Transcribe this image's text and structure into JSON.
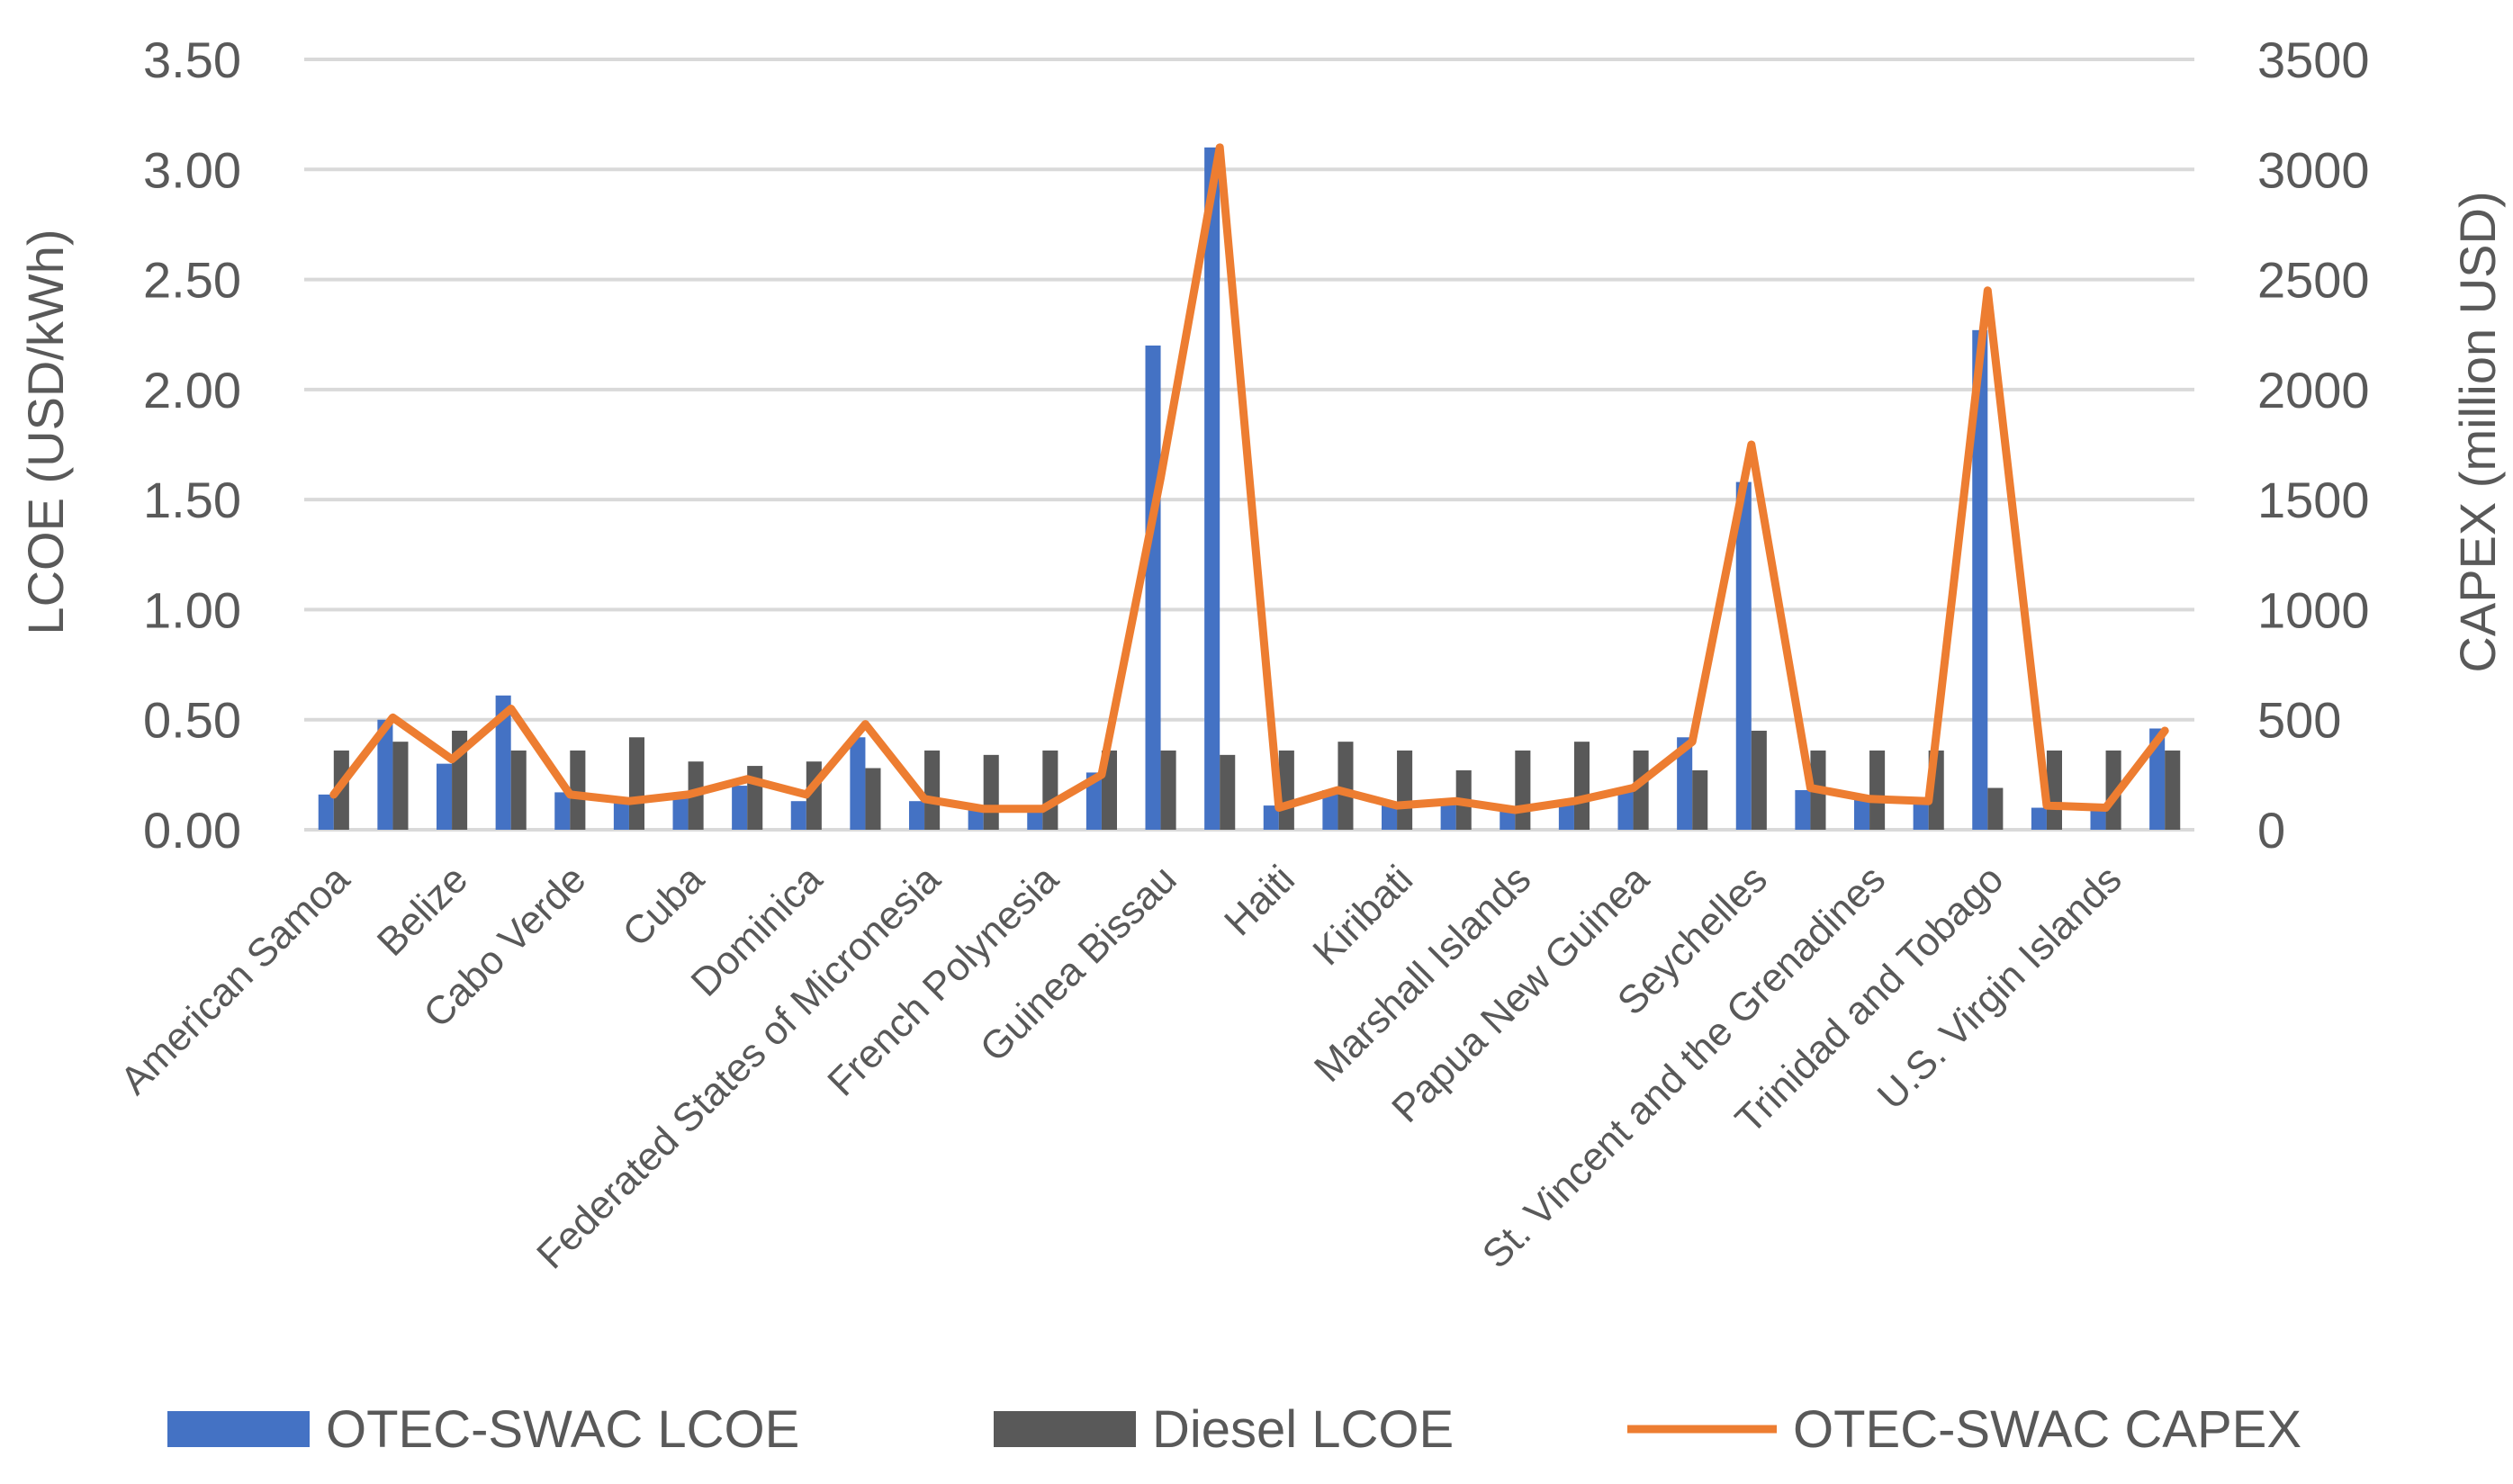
{
  "chart_data": {
    "type": "bar",
    "categories": [
      "American Samoa",
      "",
      "Belize",
      "",
      "Cabo Verde",
      "",
      "Cuba",
      "",
      "Dominica",
      "",
      "Federated States of Micronesia",
      "",
      "French Polynesia",
      "",
      "Guinea Bissau",
      "",
      "Haiti",
      "",
      "Kiribati",
      "",
      "Marshall Islands",
      "",
      "Papua New Guinea",
      "",
      "Seychelles",
      "",
      "St. Vincent and the Grenadines",
      "",
      "Trinidad and Tobago",
      "",
      "U.S. Virgin Islands",
      ""
    ],
    "series": [
      {
        "name": "OTEC-SWAC LCOE",
        "type": "bar",
        "axis": "left",
        "color": "#4472C4",
        "values": [
          0.16,
          0.5,
          0.3,
          0.61,
          0.17,
          0.14,
          0.15,
          0.2,
          0.13,
          0.42,
          0.13,
          0.1,
          0.1,
          0.26,
          2.2,
          3.1,
          0.11,
          0.18,
          0.12,
          0.12,
          0.1,
          0.12,
          0.19,
          0.42,
          1.58,
          0.18,
          0.15,
          0.12,
          2.27,
          0.1,
          0.1,
          0.46
        ]
      },
      {
        "name": "Diesel LCOE",
        "type": "bar",
        "axis": "left",
        "color": "#595959",
        "values": [
          0.36,
          0.4,
          0.45,
          0.36,
          0.36,
          0.42,
          0.31,
          0.29,
          0.31,
          0.28,
          0.36,
          0.34,
          0.36,
          0.36,
          0.36,
          0.34,
          0.36,
          0.4,
          0.36,
          0.27,
          0.36,
          0.4,
          0.36,
          0.27,
          0.45,
          0.36,
          0.36,
          0.36,
          0.19,
          0.36,
          0.36,
          0.36
        ]
      },
      {
        "name": "OTEC-SWAC CAPEX",
        "type": "line",
        "axis": "right",
        "color": "#ED7D31",
        "values": [
          160,
          510,
          320,
          550,
          160,
          130,
          160,
          230,
          160,
          480,
          140,
          95,
          95,
          250,
          1600,
          3100,
          100,
          180,
          110,
          130,
          90,
          130,
          190,
          400,
          1750,
          190,
          140,
          130,
          2450,
          110,
          100,
          450
        ]
      }
    ],
    "ylabel": "LCOE (USD/kWh)",
    "y2label": "CAPEX (million USD)",
    "ylim": [
      0,
      3.5
    ],
    "y2lim": [
      0,
      3500
    ],
    "yticks": [
      "0.00",
      "0.50",
      "1.00",
      "1.50",
      "2.00",
      "2.50",
      "3.00",
      "3.50"
    ],
    "y2ticks": [
      "0",
      "500",
      "1000",
      "1500",
      "2000",
      "2500",
      "3000",
      "3500"
    ],
    "grid": true,
    "legend_position": "bottom"
  }
}
